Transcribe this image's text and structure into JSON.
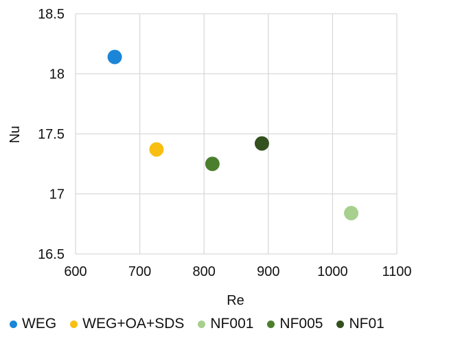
{
  "chart_data": {
    "type": "scatter",
    "title": "",
    "xlabel": "Re",
    "ylabel": "Nu",
    "xlim": [
      600,
      1100
    ],
    "ylim": [
      16.5,
      18.5
    ],
    "xticks": [
      600,
      700,
      800,
      900,
      1000,
      1100
    ],
    "yticks": [
      16.5,
      17,
      17.5,
      18,
      18.5
    ],
    "xtick_labels": [
      "600",
      "700",
      "800",
      "900",
      "1000",
      "1100"
    ],
    "ytick_labels": [
      "16.5",
      "17",
      "17.5",
      "18",
      "18.5"
    ],
    "grid": true,
    "legend_position": "bottom",
    "series": [
      {
        "name": "WEG",
        "color": "#1b86d8",
        "x": [
          661
        ],
        "y": [
          18.14
        ]
      },
      {
        "name": "WEG+OA+SDS",
        "color": "#f8bf12",
        "x": [
          726
        ],
        "y": [
          17.37
        ]
      },
      {
        "name": "NF001",
        "color": "#a7cf8e",
        "x": [
          1029
        ],
        "y": [
          16.84
        ]
      },
      {
        "name": "NF005",
        "color": "#4b7f2e",
        "x": [
          813
        ],
        "y": [
          17.25
        ]
      },
      {
        "name": "NF01",
        "color": "#33501f",
        "x": [
          890
        ],
        "y": [
          17.42
        ]
      }
    ]
  }
}
